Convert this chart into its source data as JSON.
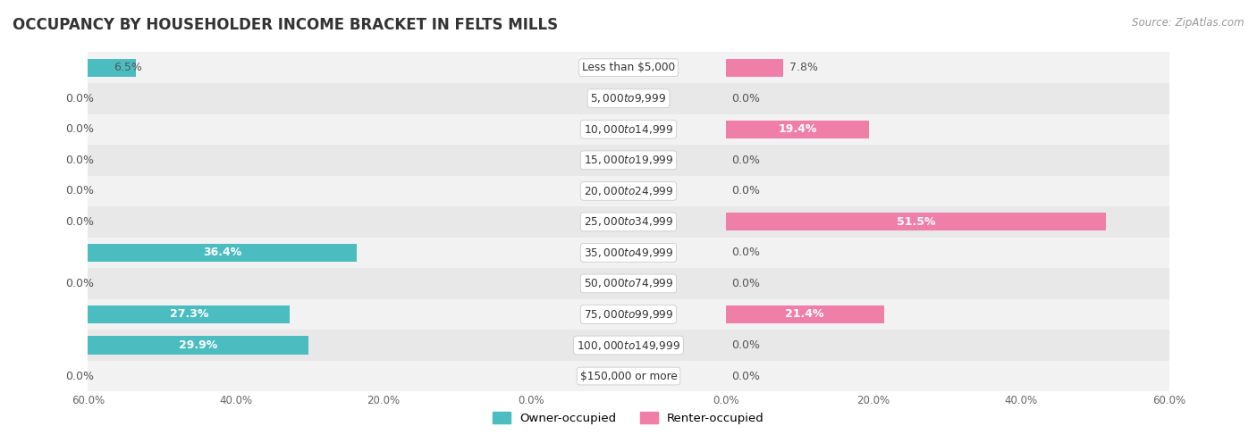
{
  "title": "OCCUPANCY BY HOUSEHOLDER INCOME BRACKET IN FELTS MILLS",
  "source": "Source: ZipAtlas.com",
  "categories": [
    "Less than $5,000",
    "$5,000 to $9,999",
    "$10,000 to $14,999",
    "$15,000 to $19,999",
    "$20,000 to $24,999",
    "$25,000 to $34,999",
    "$35,000 to $49,999",
    "$50,000 to $74,999",
    "$75,000 to $99,999",
    "$100,000 to $149,999",
    "$150,000 or more"
  ],
  "owner_values": [
    6.5,
    0.0,
    0.0,
    0.0,
    0.0,
    0.0,
    36.4,
    0.0,
    27.3,
    29.9,
    0.0
  ],
  "renter_values": [
    7.8,
    0.0,
    19.4,
    0.0,
    0.0,
    51.5,
    0.0,
    0.0,
    21.4,
    0.0,
    0.0
  ],
  "owner_color": "#4bbdc0",
  "renter_color": "#f07fa8",
  "row_bg_colors": [
    "#f2f2f2",
    "#e8e8e8"
  ],
  "xlim": 60.0,
  "bar_height": 0.58,
  "label_fontsize": 9.0,
  "title_fontsize": 12,
  "source_fontsize": 8.5,
  "tick_fontsize": 8.5,
  "legend_fontsize": 9.5,
  "label_color_dark": "#555555",
  "label_color_white": "#ffffff",
  "center_label_bg": "#ffffff",
  "center_label_border": "#cccccc",
  "label_threshold": 12.0
}
